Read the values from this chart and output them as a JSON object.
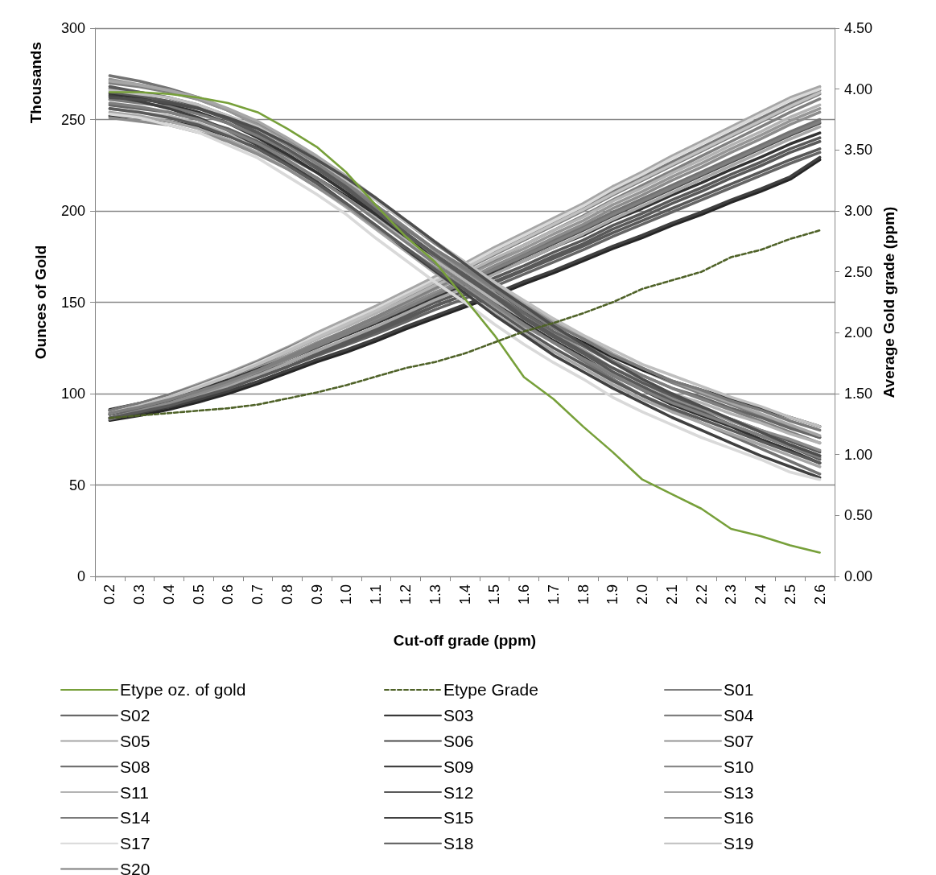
{
  "chart_data": {
    "type": "line",
    "xlabel": "Cut-off grade (ppm)",
    "ylabel": "Ounces of Gold",
    "y2label": "Average Gold grade (ppm)",
    "annotations": [
      "Thousands"
    ],
    "categories": [
      "0.2",
      "0.3",
      "0.4",
      "0.5",
      "0.6",
      "0.7",
      "0.8",
      "0.9",
      "1.0",
      "1.1",
      "1.2",
      "1.3",
      "1.4",
      "1.5",
      "1.6",
      "1.7",
      "1.8",
      "1.9",
      "2.0",
      "2.1",
      "2.2",
      "2.3",
      "2.4",
      "2.5",
      "2.6"
    ],
    "ylim": [
      0,
      300
    ],
    "yticks": [
      0,
      50,
      100,
      150,
      200,
      250,
      300
    ],
    "y2lim": [
      0,
      4.5
    ],
    "y2ticks": [
      {
        "value": 0,
        "label": "0.00"
      },
      {
        "value": 0.5,
        "label": "0.50"
      },
      {
        "value": 1,
        "label": "1.00"
      },
      {
        "value": 1.5,
        "label": "1.50"
      },
      {
        "value": 2,
        "label": "2.00"
      },
      {
        "value": 2.5,
        "label": "2.50"
      },
      {
        "value": 3,
        "label": "3.00"
      },
      {
        "value": 3.5,
        "label": "3.50"
      },
      {
        "value": 4,
        "label": "4.00"
      },
      {
        "value": 4.5,
        "label": "4.50"
      }
    ],
    "grid": "y",
    "legend": "bottom",
    "marker": "none",
    "line_style": "solid",
    "series": [
      {
        "name": "Etype oz. of gold",
        "color": "#77a03a",
        "values": [
          265,
          265,
          264,
          262,
          259,
          254,
          245,
          235,
          221,
          203,
          186,
          172,
          152,
          132,
          109,
          97,
          82,
          68,
          53,
          45,
          37,
          26,
          22,
          17,
          13
        ]
      },
      {
        "name": "Etype Grade",
        "color": "#4f6228",
        "axis": "y2",
        "line_style": "dashed",
        "values": [
          1.3,
          1.32,
          1.34,
          1.36,
          1.38,
          1.41,
          1.46,
          1.51,
          1.57,
          1.64,
          1.71,
          1.76,
          1.83,
          1.92,
          2.01,
          2.08,
          2.16,
          2.25,
          2.36,
          2.43,
          2.5,
          2.62,
          2.68,
          2.77,
          2.84
        ]
      },
      {
        "name": "S01",
        "color": "#7f7f7f",
        "values": [
          270,
          268,
          265,
          261,
          255,
          248,
          239,
          229,
          218,
          206,
          194,
          182,
          171,
          160,
          149,
          139,
          130,
          121,
          113,
          106,
          100,
          94,
          88,
          82,
          76
        ]
      },
      {
        "name": "S02",
        "color": "#595959",
        "values": [
          256,
          254,
          251,
          247,
          241,
          234,
          225,
          215,
          204,
          192,
          180,
          168,
          157,
          146,
          135,
          125,
          116,
          107,
          99,
          92,
          86,
          80,
          74,
          68,
          62
        ]
      },
      {
        "name": "S03",
        "color": "#262626",
        "values": [
          252,
          251,
          249,
          246,
          241,
          235,
          227,
          218,
          208,
          197,
          186,
          175,
          165,
          155,
          145,
          136,
          128,
          120,
          113,
          107,
          102,
          97,
          92,
          87,
          82
        ]
      },
      {
        "name": "S04",
        "color": "#737373",
        "values": [
          274,
          271,
          267,
          262,
          255,
          247,
          237,
          226,
          214,
          201,
          188,
          175,
          163,
          151,
          139,
          128,
          118,
          108,
          99,
          91,
          84,
          77,
          70,
          63,
          56
        ]
      },
      {
        "name": "S05",
        "color": "#a6a6a6",
        "values": [
          254,
          252,
          249,
          245,
          239,
          232,
          223,
          213,
          202,
          190,
          178,
          166,
          155,
          144,
          133,
          123,
          114,
          105,
          97,
          90,
          84,
          78,
          72,
          66,
          60
        ]
      },
      {
        "name": "S06",
        "color": "#4d4d4d",
        "values": [
          262,
          261,
          259,
          256,
          251,
          245,
          237,
          228,
          218,
          207,
          195,
          183,
          171,
          159,
          148,
          137,
          127,
          117,
          108,
          100,
          93,
          86,
          79,
          72,
          66
        ]
      },
      {
        "name": "S07",
        "color": "#969696",
        "values": [
          272,
          269,
          266,
          261,
          255,
          247,
          238,
          227,
          216,
          203,
          191,
          178,
          167,
          155,
          144,
          133,
          124,
          114,
          106,
          98,
          92,
          85,
          79,
          72,
          66
        ]
      },
      {
        "name": "S08",
        "color": "#666666",
        "values": [
          258,
          256,
          254,
          250,
          245,
          238,
          230,
          221,
          210,
          199,
          187,
          176,
          165,
          154,
          144,
          134,
          126,
          117,
          110,
          103,
          98,
          92,
          87,
          81,
          76
        ]
      },
      {
        "name": "S09",
        "color": "#333333",
        "values": [
          264,
          262,
          258,
          254,
          248,
          240,
          231,
          221,
          210,
          198,
          185,
          173,
          162,
          150,
          139,
          129,
          120,
          110,
          102,
          94,
          88,
          82,
          75,
          69,
          62
        ]
      },
      {
        "name": "S10",
        "color": "#808080",
        "values": [
          267,
          265,
          262,
          258,
          252,
          245,
          236,
          226,
          215,
          203,
          191,
          179,
          168,
          157,
          146,
          136,
          127,
          118,
          110,
          103,
          97,
          91,
          85,
          79,
          73
        ]
      },
      {
        "name": "S11",
        "color": "#b3b3b3",
        "values": [
          256,
          254,
          252,
          248,
          242,
          236,
          227,
          218,
          207,
          196,
          184,
          173,
          162,
          151,
          141,
          131,
          123,
          114,
          107,
          100,
          95,
          89,
          84,
          78,
          73
        ]
      },
      {
        "name": "S12",
        "color": "#595959",
        "values": [
          265,
          263,
          260,
          256,
          250,
          242,
          233,
          223,
          212,
          200,
          188,
          176,
          165,
          154,
          142,
          132,
          123,
          114,
          106,
          99,
          92,
          86,
          80,
          74,
          68
        ]
      },
      {
        "name": "S13",
        "color": "#a6a6a6",
        "values": [
          271,
          269,
          266,
          262,
          256,
          249,
          240,
          230,
          219,
          207,
          195,
          183,
          172,
          161,
          150,
          140,
          131,
          122,
          114,
          107,
          101,
          95,
          89,
          83,
          77
        ]
      },
      {
        "name": "S14",
        "color": "#7a7a7a",
        "values": [
          261,
          259,
          257,
          253,
          248,
          241,
          233,
          224,
          213,
          202,
          190,
          179,
          169,
          158,
          148,
          138,
          130,
          121,
          114,
          107,
          102,
          96,
          91,
          85,
          80
        ]
      },
      {
        "name": "S15",
        "color": "#404040",
        "values": [
          263,
          260,
          256,
          251,
          244,
          236,
          226,
          216,
          204,
          192,
          179,
          167,
          155,
          143,
          132,
          121,
          112,
          103,
          95,
          87,
          80,
          73,
          66,
          60,
          54
        ]
      },
      {
        "name": "S16",
        "color": "#8c8c8c",
        "values": [
          251,
          249,
          247,
          243,
          238,
          231,
          223,
          213,
          203,
          191,
          180,
          169,
          158,
          148,
          137,
          128,
          119,
          111,
          103,
          97,
          91,
          86,
          80,
          75,
          69
        ]
      },
      {
        "name": "S17",
        "color": "#d9d9d9",
        "values": [
          253,
          251,
          247,
          243,
          236,
          229,
          219,
          209,
          198,
          185,
          173,
          161,
          150,
          138,
          127,
          117,
          108,
          98,
          90,
          83,
          76,
          70,
          64,
          57,
          53
        ]
      },
      {
        "name": "S18",
        "color": "#595959",
        "values": [
          268,
          265,
          262,
          257,
          251,
          243,
          234,
          224,
          213,
          200,
          188,
          176,
          164,
          153,
          141,
          131,
          122,
          112,
          104,
          96,
          90,
          83,
          77,
          71,
          64
        ]
      },
      {
        "name": "S19",
        "color": "#bfbfbf",
        "values": [
          266,
          264,
          262,
          258,
          252,
          246,
          237,
          228,
          217,
          206,
          194,
          183,
          172,
          161,
          151,
          141,
          132,
          124,
          116,
          110,
          104,
          98,
          93,
          87,
          82
        ]
      },
      {
        "name": "S20",
        "color": "#7f7f7f",
        "values": [
          259,
          257,
          254,
          250,
          244,
          237,
          228,
          218,
          207,
          195,
          183,
          171,
          160,
          149,
          138,
          128,
          119,
          110,
          102,
          95,
          89,
          83,
          77,
          71,
          65
        ]
      },
      {
        "color": "#7f7f7f",
        "axis": "y2",
        "values": [
          1.33,
          1.39,
          1.46,
          1.54,
          1.63,
          1.73,
          1.84,
          1.95,
          2.06,
          2.17,
          2.29,
          2.41,
          2.52,
          2.64,
          2.76,
          2.88,
          3.0,
          3.13,
          3.25,
          3.37,
          3.49,
          3.61,
          3.73,
          3.85,
          3.96
        ]
      },
      {
        "color": "#595959",
        "axis": "y2",
        "values": [
          1.33,
          1.38,
          1.43,
          1.5,
          1.57,
          1.66,
          1.75,
          1.85,
          1.94,
          2.04,
          2.14,
          2.25,
          2.34,
          2.45,
          2.55,
          2.66,
          2.76,
          2.88,
          2.98,
          3.09,
          3.19,
          3.3,
          3.4,
          3.51,
          3.6
        ]
      },
      {
        "color": "#262626",
        "axis": "y2",
        "values": [
          1.28,
          1.32,
          1.37,
          1.43,
          1.5,
          1.58,
          1.67,
          1.76,
          1.84,
          1.93,
          2.03,
          2.12,
          2.21,
          2.3,
          2.4,
          2.49,
          2.59,
          2.69,
          2.78,
          2.88,
          2.97,
          3.07,
          3.16,
          3.26,
          3.42
        ]
      },
      {
        "color": "#737373",
        "axis": "y2",
        "values": [
          1.36,
          1.41,
          1.47,
          1.54,
          1.62,
          1.71,
          1.81,
          1.91,
          2.01,
          2.11,
          2.22,
          2.33,
          2.43,
          2.54,
          2.65,
          2.76,
          2.87,
          2.99,
          3.1,
          3.21,
          3.32,
          3.43,
          3.54,
          3.65,
          3.75
        ]
      },
      {
        "color": "#a6a6a6",
        "axis": "y2",
        "values": [
          1.36,
          1.42,
          1.49,
          1.58,
          1.67,
          1.77,
          1.88,
          2.0,
          2.11,
          2.22,
          2.34,
          2.46,
          2.57,
          2.7,
          2.82,
          2.94,
          3.06,
          3.2,
          3.32,
          3.45,
          3.57,
          3.69,
          3.81,
          3.93,
          4.02
        ]
      },
      {
        "color": "#4d4d4d",
        "axis": "y2",
        "values": [
          1.33,
          1.38,
          1.44,
          1.51,
          1.59,
          1.68,
          1.78,
          1.88,
          1.98,
          2.08,
          2.19,
          2.3,
          2.4,
          2.51,
          2.62,
          2.73,
          2.84,
          2.96,
          3.07,
          3.18,
          3.29,
          3.4,
          3.51,
          3.62,
          3.72
        ]
      },
      {
        "color": "#969696",
        "axis": "y2",
        "values": [
          1.33,
          1.39,
          1.45,
          1.53,
          1.61,
          1.71,
          1.81,
          1.92,
          2.02,
          2.13,
          2.24,
          2.36,
          2.46,
          2.58,
          2.69,
          2.81,
          2.92,
          3.05,
          3.16,
          3.28,
          3.39,
          3.51,
          3.62,
          3.74,
          3.84
        ]
      },
      {
        "color": "#666666",
        "axis": "y2",
        "values": [
          1.33,
          1.37,
          1.42,
          1.48,
          1.55,
          1.63,
          1.72,
          1.81,
          1.9,
          1.99,
          2.09,
          2.19,
          2.28,
          2.38,
          2.48,
          2.58,
          2.68,
          2.79,
          2.89,
          2.99,
          3.09,
          3.19,
          3.29,
          3.39,
          3.48
        ]
      },
      {
        "color": "#333333",
        "axis": "y2",
        "values": [
          1.37,
          1.42,
          1.47,
          1.54,
          1.61,
          1.7,
          1.79,
          1.89,
          1.98,
          2.08,
          2.18,
          2.29,
          2.38,
          2.49,
          2.59,
          2.7,
          2.8,
          2.92,
          3.02,
          3.13,
          3.23,
          3.34,
          3.44,
          3.55,
          3.64
        ]
      },
      {
        "color": "#808080",
        "axis": "y2",
        "values": [
          1.29,
          1.35,
          1.42,
          1.5,
          1.59,
          1.69,
          1.8,
          1.91,
          2.02,
          2.13,
          2.25,
          2.37,
          2.48,
          2.6,
          2.72,
          2.84,
          2.96,
          3.09,
          3.21,
          3.33,
          3.45,
          3.57,
          3.69,
          3.81,
          3.92
        ]
      },
      {
        "color": "#b3b3b3",
        "axis": "y2",
        "values": [
          1.36,
          1.42,
          1.48,
          1.56,
          1.64,
          1.74,
          1.84,
          1.95,
          2.05,
          2.16,
          2.27,
          2.39,
          2.49,
          2.61,
          2.72,
          2.84,
          2.95,
          3.08,
          3.19,
          3.31,
          3.42,
          3.54,
          3.65,
          3.77,
          3.87
        ]
      },
      {
        "color": "#595959",
        "axis": "y2",
        "values": [
          1.36,
          1.4,
          1.45,
          1.51,
          1.58,
          1.66,
          1.75,
          1.84,
          1.93,
          2.02,
          2.12,
          2.22,
          2.31,
          2.41,
          2.51,
          2.61,
          2.71,
          2.82,
          2.92,
          3.02,
          3.12,
          3.22,
          3.32,
          3.42,
          3.51
        ]
      },
      {
        "color": "#a6a6a6",
        "axis": "y2",
        "values": [
          1.3,
          1.35,
          1.41,
          1.48,
          1.56,
          1.65,
          1.75,
          1.85,
          1.95,
          2.05,
          2.16,
          2.27,
          2.37,
          2.48,
          2.59,
          2.7,
          2.81,
          2.93,
          3.04,
          3.15,
          3.26,
          3.37,
          3.48,
          3.59,
          3.69
        ]
      },
      {
        "color": "#7a7a7a",
        "axis": "y2",
        "values": [
          1.36,
          1.42,
          1.49,
          1.57,
          1.66,
          1.76,
          1.87,
          1.98,
          2.09,
          2.2,
          2.32,
          2.44,
          2.55,
          2.67,
          2.79,
          2.91,
          3.03,
          3.16,
          3.28,
          3.4,
          3.52,
          3.64,
          3.76,
          3.88,
          3.99
        ]
      },
      {
        "color": "#404040",
        "axis": "y2",
        "values": [
          1.3,
          1.34,
          1.39,
          1.45,
          1.52,
          1.6,
          1.69,
          1.78,
          1.86,
          1.95,
          2.05,
          2.14,
          2.23,
          2.32,
          2.42,
          2.51,
          2.61,
          2.71,
          2.8,
          2.9,
          2.99,
          3.09,
          3.18,
          3.28,
          3.44
        ]
      },
      {
        "color": "#8c8c8c",
        "axis": "y2",
        "values": [
          1.3,
          1.36,
          1.42,
          1.5,
          1.58,
          1.68,
          1.78,
          1.89,
          1.99,
          2.1,
          2.21,
          2.33,
          2.43,
          2.55,
          2.66,
          2.78,
          2.89,
          3.02,
          3.13,
          3.25,
          3.36,
          3.48,
          3.59,
          3.71,
          3.81
        ]
      },
      {
        "color": "#d9d9d9",
        "axis": "y2",
        "values": [
          1.34,
          1.4,
          1.47,
          1.56,
          1.65,
          1.75,
          1.86,
          1.98,
          2.09,
          2.2,
          2.32,
          2.44,
          2.55,
          2.68,
          2.8,
          2.92,
          3.04,
          3.18,
          3.3,
          3.43,
          3.55,
          3.67,
          3.79,
          3.91,
          4.0
        ]
      },
      {
        "color": "#595959",
        "axis": "y2",
        "values": [
          1.3,
          1.35,
          1.4,
          1.47,
          1.54,
          1.63,
          1.72,
          1.82,
          1.91,
          2.01,
          2.11,
          2.22,
          2.31,
          2.42,
          2.52,
          2.63,
          2.73,
          2.85,
          2.95,
          3.06,
          3.16,
          3.27,
          3.37,
          3.48,
          3.57
        ]
      },
      {
        "color": "#bfbfbf",
        "axis": "y2",
        "values": [
          1.34,
          1.4,
          1.47,
          1.55,
          1.64,
          1.74,
          1.85,
          1.96,
          2.07,
          2.18,
          2.3,
          2.42,
          2.53,
          2.65,
          2.77,
          2.89,
          3.01,
          3.14,
          3.26,
          3.38,
          3.5,
          3.62,
          3.74,
          3.86,
          3.97
        ]
      },
      {
        "color": "#7f7f7f",
        "axis": "y2",
        "values": [
          1.34,
          1.39,
          1.45,
          1.52,
          1.6,
          1.69,
          1.79,
          1.89,
          1.99,
          2.09,
          2.2,
          2.31,
          2.41,
          2.52,
          2.63,
          2.74,
          2.85,
          2.97,
          3.08,
          3.19,
          3.3,
          3.41,
          3.52,
          3.63,
          3.73
        ]
      }
    ]
  }
}
